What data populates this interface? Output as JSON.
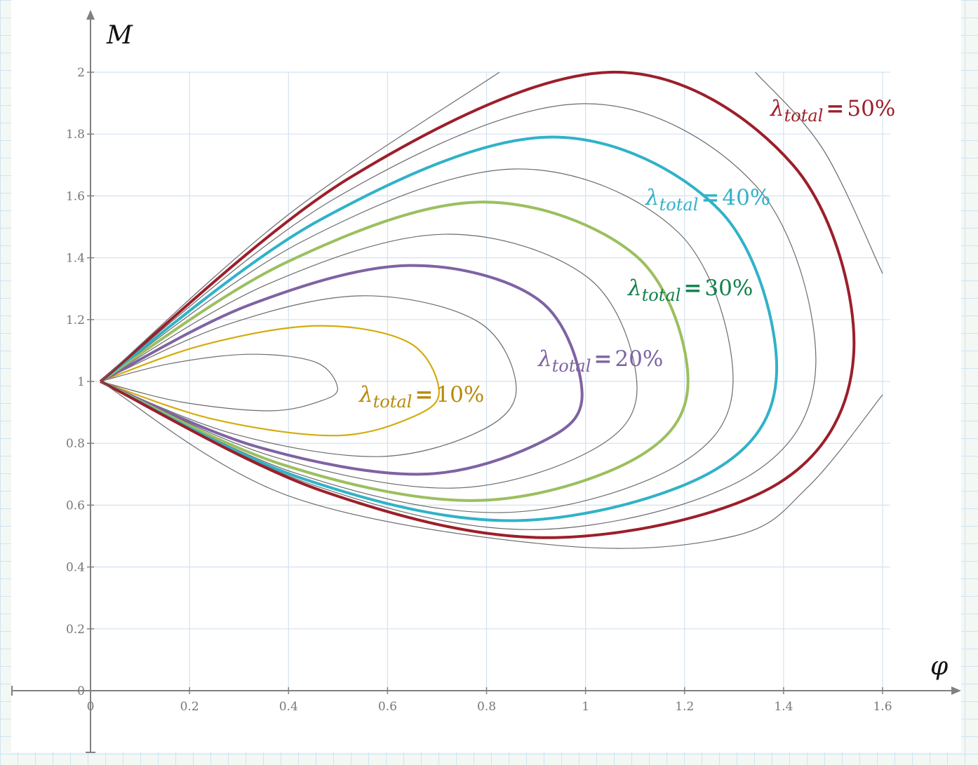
{
  "chart_data": {
    "type": "line",
    "xlabel": "φ",
    "ylabel": "M",
    "xlim": [
      0,
      1.6
    ],
    "ylim": [
      0,
      2
    ],
    "grid": true,
    "xticks": [
      "0",
      "0.2",
      "0.4",
      "0.6",
      "0.8",
      "1",
      "1.2",
      "1.4",
      "1.6"
    ],
    "yticks": [
      "0",
      "0.2",
      "0.4",
      "0.6",
      "0.8",
      "1",
      "1.2",
      "1.4",
      "1.6",
      "1.8",
      "2"
    ],
    "series": [
      {
        "color": "#6b6b6b",
        "width": 1.2,
        "points": [
          [
            0.02,
            1
          ],
          [
            0.162,
            1.058
          ],
          [
            0.323,
            1.088
          ],
          [
            0.455,
            1.062
          ],
          [
            0.499,
            0.98
          ],
          [
            0.467,
            0.938
          ],
          [
            0.363,
            0.905
          ],
          [
            0.182,
            0.934
          ],
          [
            0.02,
            1
          ]
        ]
      },
      {
        "name": "λtotal = 10%",
        "color": "#d4ac0d",
        "width": 2.2,
        "points": [
          [
            0.02,
            1
          ],
          [
            0.23,
            1.119
          ],
          [
            0.46,
            1.18
          ],
          [
            0.643,
            1.126
          ],
          [
            0.704,
            0.97
          ],
          [
            0.652,
            0.886
          ],
          [
            0.495,
            0.825
          ],
          [
            0.248,
            0.878
          ],
          [
            0.02,
            1
          ]
        ]
      },
      {
        "color": "#6b6b6b",
        "width": 1.2,
        "points": [
          [
            0.02,
            1
          ],
          [
            0.274,
            1.183
          ],
          [
            0.547,
            1.277
          ],
          [
            0.782,
            1.194
          ],
          [
            0.86,
            0.98
          ],
          [
            0.79,
            0.842
          ],
          [
            0.58,
            0.757
          ],
          [
            0.29,
            0.83
          ],
          [
            0.02,
            1
          ]
        ]
      },
      {
        "name": "λtotal = 20%",
        "color": "#7e63a3",
        "width": 4,
        "points": [
          [
            0.02,
            1
          ],
          [
            0.322,
            1.248
          ],
          [
            0.643,
            1.375
          ],
          [
            0.906,
            1.263
          ],
          [
            0.993,
            0.96
          ],
          [
            0.912,
            0.805
          ],
          [
            0.667,
            0.7
          ],
          [
            0.334,
            0.79
          ],
          [
            0.02,
            1
          ]
        ]
      },
      {
        "color": "#6b6b6b",
        "width": 1.2,
        "points": [
          [
            0.02,
            1
          ],
          [
            0.357,
            1.314
          ],
          [
            0.714,
            1.476
          ],
          [
            1.007,
            1.333
          ],
          [
            1.104,
            0.98
          ],
          [
            1.011,
            0.776
          ],
          [
            0.73,
            0.655
          ],
          [
            0.365,
            0.759
          ],
          [
            0.02,
            1
          ]
        ]
      },
      {
        "name": "λtotal = 30%",
        "color": "#9bbf5f",
        "width": 4,
        "points": [
          [
            0.02,
            1
          ],
          [
            0.393,
            1.383
          ],
          [
            0.785,
            1.58
          ],
          [
            1.102,
            1.406
          ],
          [
            1.207,
            1.0
          ],
          [
            1.1,
            0.75
          ],
          [
            0.78,
            0.615
          ],
          [
            0.39,
            0.73
          ],
          [
            0.02,
            1
          ]
        ]
      },
      {
        "color": "#6b6b6b",
        "width": 1.2,
        "points": [
          [
            0.02,
            1
          ],
          [
            0.428,
            1.453
          ],
          [
            0.856,
            1.687
          ],
          [
            1.188,
            1.481
          ],
          [
            1.298,
            1.0
          ],
          [
            1.181,
            0.724
          ],
          [
            0.83,
            0.576
          ],
          [
            0.415,
            0.703
          ],
          [
            0.02,
            1
          ]
        ]
      },
      {
        "name": "λtotal = 40%",
        "color": "#30b2c8",
        "width": 4,
        "points": [
          [
            0.02,
            1
          ],
          [
            0.462,
            1.521
          ],
          [
            0.924,
            1.79
          ],
          [
            1.271,
            1.553
          ],
          [
            1.386,
            1.03
          ],
          [
            1.255,
            0.708
          ],
          [
            0.86,
            0.55
          ],
          [
            0.43,
            0.685
          ],
          [
            0.02,
            1
          ]
        ]
      },
      {
        "color": "#6b6b6b",
        "width": 1.2,
        "points": [
          [
            0.02,
            1
          ],
          [
            0.495,
            1.593
          ],
          [
            0.99,
            1.898
          ],
          [
            1.346,
            1.629
          ],
          [
            1.465,
            1.05
          ],
          [
            1.324,
            0.689
          ],
          [
            0.9,
            0.521
          ],
          [
            0.45,
            0.665
          ],
          [
            0.02,
            1
          ]
        ]
      },
      {
        "name": "λtotal = 50%",
        "color": "#9b1f2a",
        "width": 4,
        "points": [
          [
            0.02,
            1
          ],
          [
            0.525,
            1.66
          ],
          [
            1.05,
            2.0
          ],
          [
            1.419,
            1.7
          ],
          [
            1.542,
            1.1
          ],
          [
            1.391,
            0.672
          ],
          [
            0.937,
            0.495
          ],
          [
            0.468,
            0.646
          ],
          [
            0.02,
            1
          ]
        ]
      },
      {
        "color": "#6b6b6b",
        "width": 1.2,
        "points": [
          [
            0.02,
            1
          ],
          [
            0.4,
            1.54
          ],
          [
            0.826,
            2.0
          ]
        ]
      },
      {
        "color": "#6b6b6b",
        "width": 1.2,
        "points": [
          [
            1.343,
            2.0
          ],
          [
            1.48,
            1.75
          ],
          [
            1.6,
            1.349
          ]
        ]
      },
      {
        "color": "#6b6b6b",
        "width": 1.2,
        "points": [
          [
            0.02,
            1
          ],
          [
            0.4,
            0.63
          ],
          [
            0.95,
            0.469
          ],
          [
            1.3,
            0.5
          ],
          [
            1.45,
            0.66
          ],
          [
            1.6,
            0.957
          ]
        ]
      }
    ],
    "annotations": [
      {
        "symbol": "λ",
        "sub": "total",
        "eq": "=",
        "value": "10%",
        "color": "#b8890b"
      },
      {
        "symbol": "λ",
        "sub": "total",
        "eq": "=",
        "value": "20%",
        "color": "#7e63a3"
      },
      {
        "symbol": "λ",
        "sub": "total",
        "eq": "=",
        "value": "30%",
        "color": "#11814a"
      },
      {
        "symbol": "λ",
        "sub": "total",
        "eq": "=",
        "value": "40%",
        "color": "#30b2c8"
      },
      {
        "symbol": "λ",
        "sub": "total",
        "eq": "=",
        "value": "50%",
        "color": "#9b1f2a"
      }
    ]
  }
}
